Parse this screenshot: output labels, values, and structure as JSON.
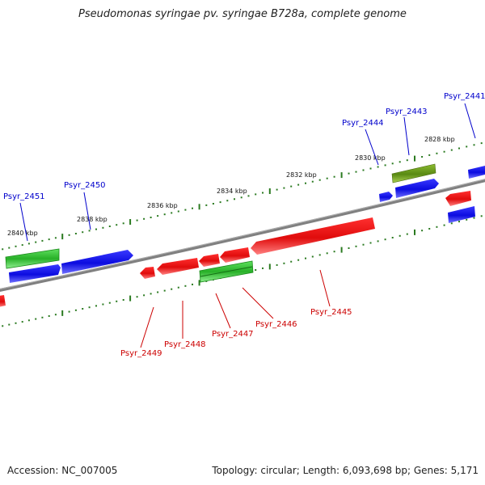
{
  "title": "Pseudomonas syringae pv. syringae B728a, complete genome",
  "footer": {
    "accession": "Accession: NC_007005",
    "topology": "Topology: circular; Length: 6,093,698 bp; Genes: 5,171"
  },
  "colors": {
    "forward_gene": "#1010e8",
    "reverse_gene": "#e81010",
    "rna_gene": "#30c030",
    "olive_gene": "#6a9a1a",
    "backbone": "#808080",
    "ticks": "#2a7a20",
    "forward_label": "#0000cc",
    "reverse_label": "#cc0000"
  },
  "kbp_labels": [
    "2840 kbp",
    "2838 kbp",
    "2836 kbp",
    "2834 kbp",
    "2832 kbp",
    "2830 kbp",
    "2828 kbp"
  ],
  "forward_labels": [
    "Psyr_2451",
    "Psyr_2450",
    "Psyr_2444",
    "Psyr_2443",
    "Psyr_2441"
  ],
  "reverse_labels": [
    "Psyr_2449",
    "Psyr_2448",
    "Psyr_2447",
    "Psyr_2446",
    "Psyr_2445"
  ]
}
